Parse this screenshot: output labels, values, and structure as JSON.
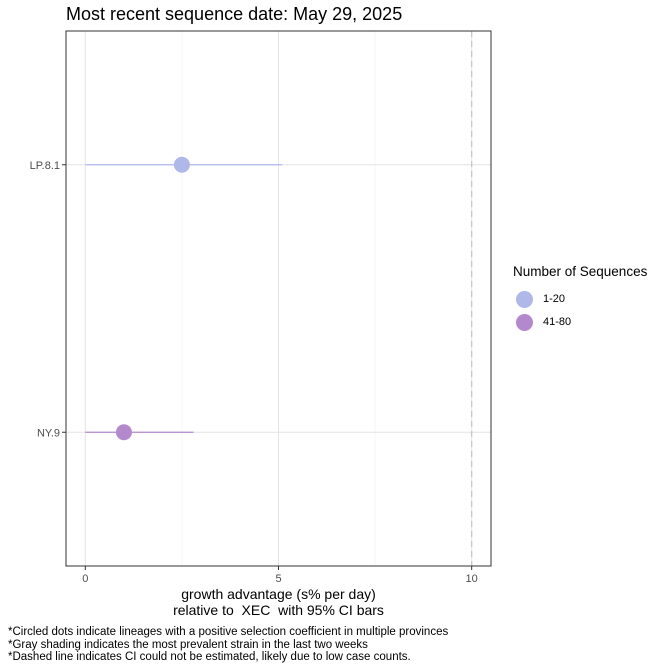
{
  "title": "Most recent sequence date: May 29, 2025",
  "xlabel_line1": "growth advantage (s% per day)",
  "xlabel_line2": "relative to  XEC  with 95% CI bars",
  "footnotes": [
    "*Circled dots indicate lineages with a positive selection coefficient in multiple provinces",
    "*Gray shading indicates the most prevalent strain in the last two weeks",
    "*Dashed line indicates CI could not be estimated, likely due to low case counts."
  ],
  "legend": {
    "title": "Number of Sequences",
    "items": [
      {
        "label": "1-20",
        "color": "#b0b8ea"
      },
      {
        "label": "41-80",
        "color": "#b488cc"
      }
    ]
  },
  "chart_data": {
    "type": "scatter",
    "title": "Most recent sequence date: May 29, 2025",
    "xlabel": "growth advantage (s% per day)\nrelative to  XEC  with 95% CI bars",
    "ylabel": "",
    "xlim": [
      -0.5,
      10.5
    ],
    "x_ticks": [
      0,
      5,
      10
    ],
    "x_tick_labels": [
      "0",
      "5",
      "10"
    ],
    "categories": [
      "LP.8.1",
      "NY.9"
    ],
    "points": [
      {
        "lineage": "LP.8.1",
        "x": 2.5,
        "ci_low": 0.0,
        "ci_high": 5.1,
        "group": "1-20",
        "color": "#b0b8ea"
      },
      {
        "lineage": "NY.9",
        "x": 1.0,
        "ci_low": 0.0,
        "ci_high": 2.8,
        "group": "41-80",
        "color": "#b488cc"
      }
    ],
    "dashed_reference_x": 10,
    "grid": true,
    "legend_position": "right"
  }
}
